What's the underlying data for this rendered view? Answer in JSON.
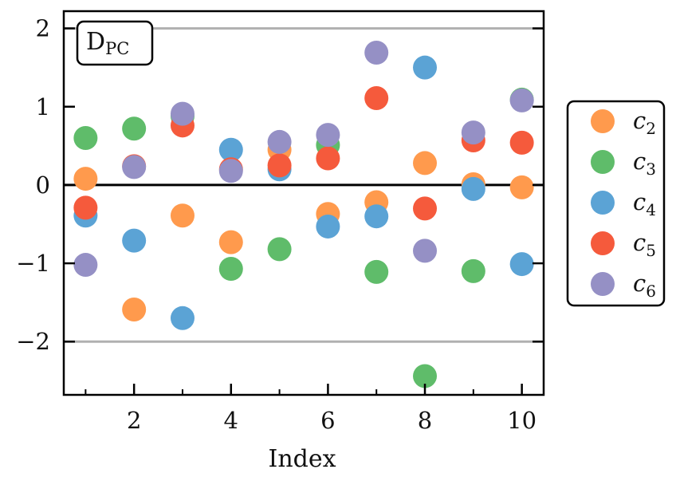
{
  "chart_data": {
    "type": "scatter",
    "title": "",
    "xlabel": "Index",
    "ylabel": "",
    "xlim": [
      0.55,
      10.45
    ],
    "ylim": [
      -2.68,
      2.22
    ],
    "xticks": [
      2,
      4,
      6,
      8,
      10
    ],
    "xticks_minor": [
      1,
      3,
      5,
      7,
      9
    ],
    "yticks": [
      -2,
      -1,
      0,
      1,
      2
    ],
    "xtick_labels": [
      "2",
      "4",
      "6",
      "8",
      "10"
    ],
    "ytick_labels": [
      "−2",
      "−1",
      "0",
      "1",
      "2"
    ],
    "hlines": [
      {
        "y": 2,
        "color": "#b0b0b0"
      },
      {
        "y": -2,
        "color": "#b0b0b0"
      },
      {
        "y": 0,
        "color": "#000000"
      }
    ],
    "annotation": {
      "base": "D",
      "sub": "PC",
      "position": "top-left"
    },
    "legend_position": "right",
    "x": [
      1,
      2,
      3,
      4,
      5,
      6,
      7,
      8,
      9,
      10
    ],
    "series": [
      {
        "name": "c",
        "sub": "2",
        "color": "#ff9a4d",
        "values": [
          0.08,
          -1.59,
          -0.39,
          -0.73,
          0.45,
          -0.37,
          -0.22,
          0.28,
          0.01,
          -0.03
        ]
      },
      {
        "name": "c",
        "sub": "3",
        "color": "#5fbc6a",
        "values": [
          0.6,
          0.72,
          0.88,
          -1.07,
          -0.82,
          0.51,
          -1.11,
          -2.44,
          -1.1,
          1.09
        ]
      },
      {
        "name": "c",
        "sub": "4",
        "color": "#5ba3d5",
        "values": [
          -0.39,
          -0.71,
          -1.7,
          0.45,
          0.2,
          -0.53,
          -0.4,
          1.5,
          -0.05,
          -1.01
        ]
      },
      {
        "name": "c",
        "sub": "5",
        "color": "#f55a3c",
        "values": [
          -0.29,
          0.24,
          0.76,
          0.2,
          0.25,
          0.34,
          1.11,
          -0.3,
          0.57,
          0.54
        ]
      },
      {
        "name": "c",
        "sub": "6",
        "color": "#9590c5",
        "values": [
          -1.02,
          0.23,
          0.91,
          0.18,
          0.55,
          0.64,
          1.69,
          -0.84,
          0.67,
          1.08
        ]
      }
    ]
  }
}
